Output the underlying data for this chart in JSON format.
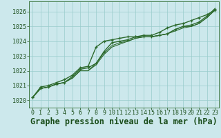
{
  "title": "Graphe pression niveau de la mer (hPa)",
  "background_color": "#cce8ec",
  "plot_bg_color": "#cce8ec",
  "grid_color": "#99cccc",
  "line_color": "#2d6a2d",
  "text_color": "#1a4d1a",
  "xlim": [
    -0.5,
    23.5
  ],
  "ylim": [
    1019.5,
    1026.7
  ],
  "xticks": [
    0,
    1,
    2,
    3,
    4,
    5,
    6,
    7,
    8,
    9,
    10,
    11,
    12,
    13,
    14,
    15,
    16,
    17,
    18,
    19,
    20,
    21,
    22,
    23
  ],
  "yticks": [
    1020,
    1021,
    1022,
    1023,
    1024,
    1025,
    1026
  ],
  "series": [
    {
      "y": [
        1020.2,
        1020.8,
        1020.9,
        1021.1,
        1021.2,
        1021.6,
        1022.1,
        1022.2,
        1022.5,
        1023.3,
        1023.9,
        1024.0,
        1024.1,
        1024.3,
        1024.3,
        1024.3,
        1024.4,
        1024.5,
        1024.8,
        1025.0,
        1025.1,
        1025.3,
        1025.7,
        1026.2
      ],
      "marker": true,
      "lw": 1.0
    },
    {
      "y": [
        1020.2,
        1020.8,
        1020.9,
        1021.1,
        1021.2,
        1021.5,
        1022.0,
        1022.0,
        1022.4,
        1023.1,
        1023.6,
        1023.8,
        1024.0,
        1024.2,
        1024.3,
        1024.3,
        1024.4,
        1024.5,
        1024.7,
        1024.9,
        1025.0,
        1025.2,
        1025.6,
        1026.1
      ],
      "marker": false,
      "lw": 0.8
    },
    {
      "y": [
        1020.2,
        1020.8,
        1020.9,
        1021.1,
        1021.2,
        1021.5,
        1022.0,
        1022.0,
        1022.5,
        1023.2,
        1023.7,
        1023.9,
        1024.0,
        1024.2,
        1024.3,
        1024.3,
        1024.4,
        1024.5,
        1024.8,
        1025.0,
        1025.0,
        1025.2,
        1025.6,
        1026.1
      ],
      "marker": false,
      "lw": 0.8
    },
    {
      "y": [
        1020.2,
        1020.9,
        1021.0,
        1021.2,
        1021.4,
        1021.7,
        1022.2,
        1022.3,
        1023.6,
        1024.0,
        1024.1,
        1024.2,
        1024.3,
        1024.3,
        1024.4,
        1024.4,
        1024.6,
        1024.9,
        1025.1,
        1025.2,
        1025.4,
        1025.6,
        1025.8,
        1026.1
      ],
      "marker": true,
      "lw": 1.0
    }
  ],
  "title_fontsize": 8.5,
  "tick_fontsize": 6.0
}
